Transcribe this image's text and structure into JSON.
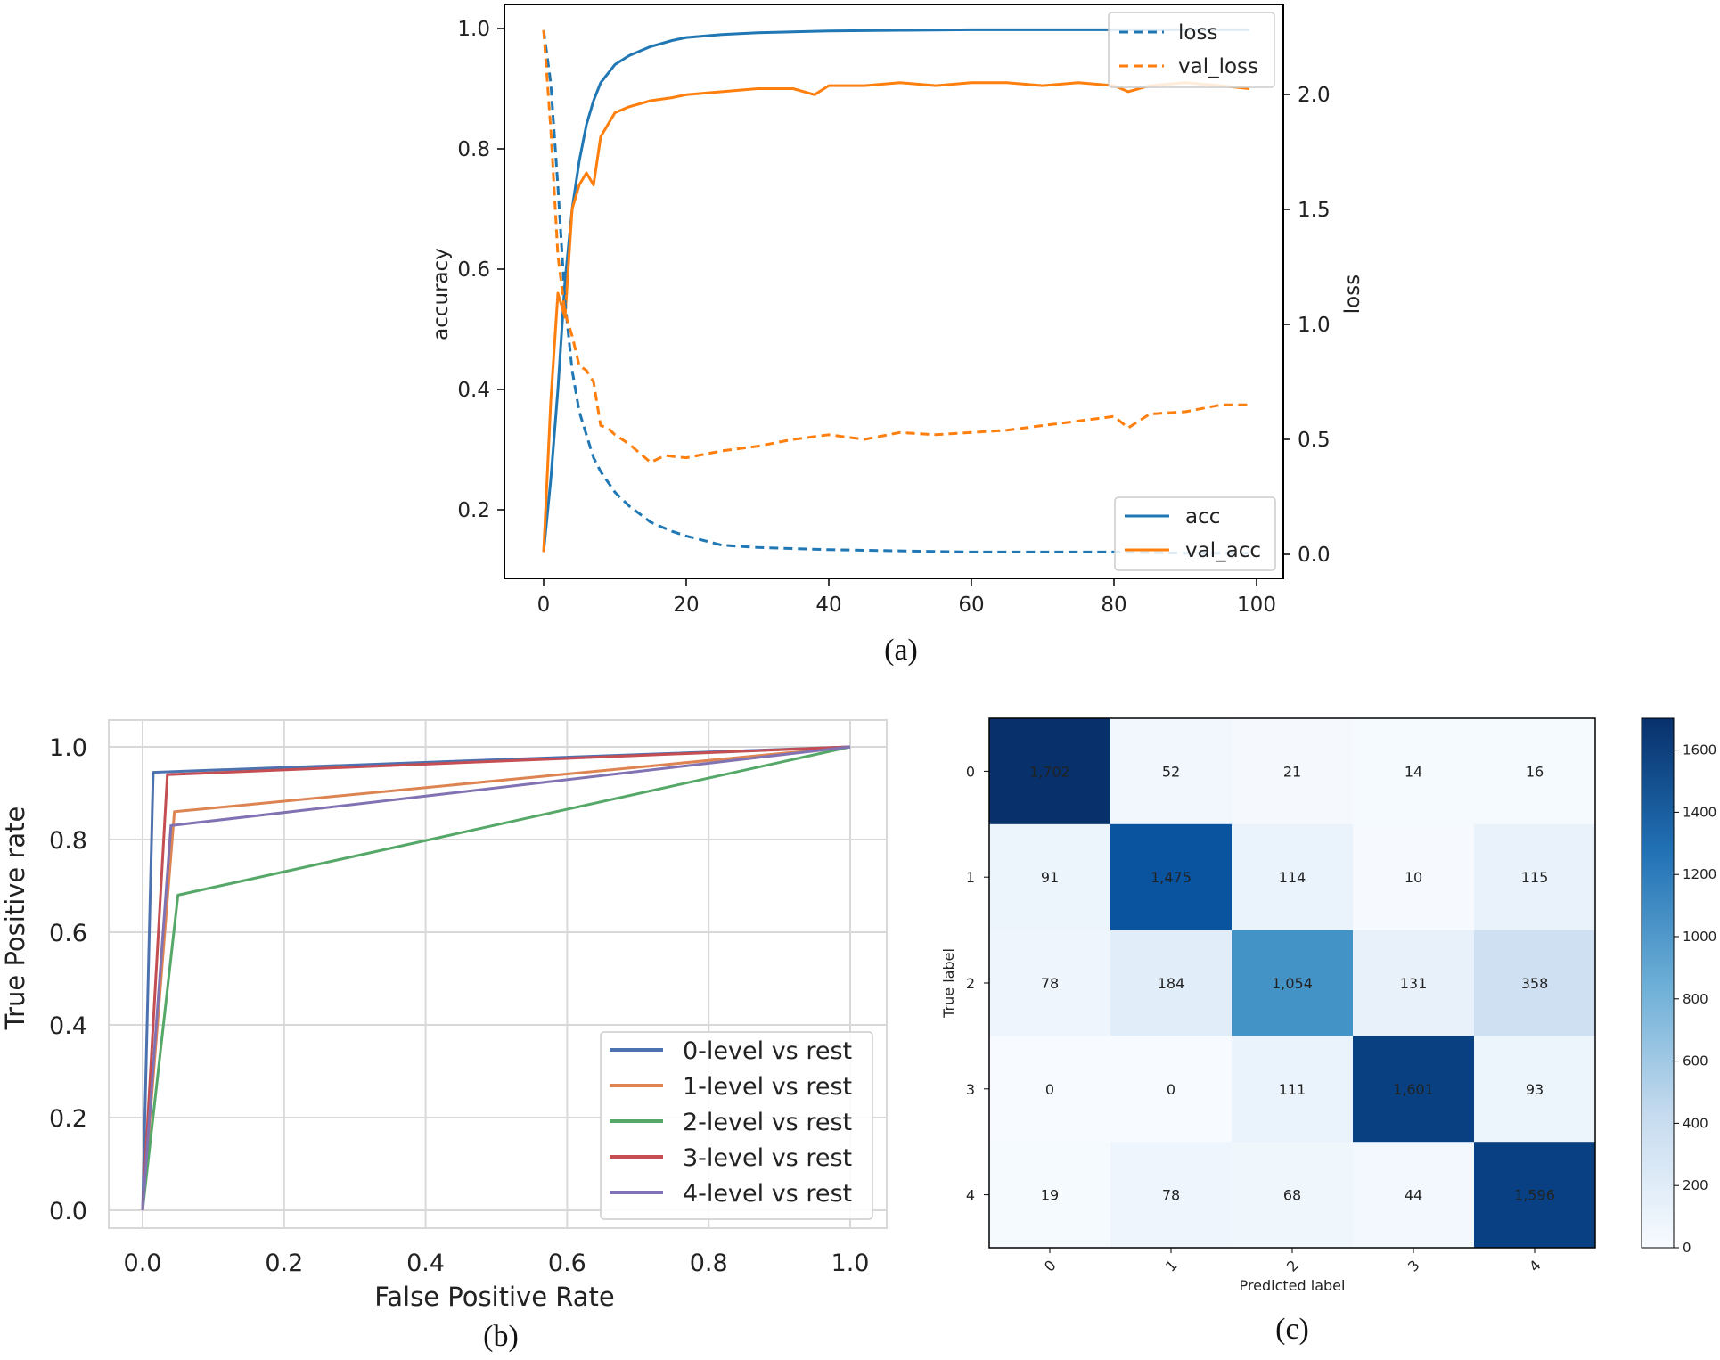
{
  "captions": {
    "a": "(a)",
    "b": "(b)",
    "c": "(c)"
  },
  "chart_data": [
    {
      "type": "line",
      "panel": "a",
      "ylabel": "accuracy",
      "y2label": "loss",
      "xlim": [
        0,
        100
      ],
      "ylim": [
        0.1,
        1.0
      ],
      "y2lim": [
        0.0,
        2.3
      ],
      "xticks": [
        "0",
        "20",
        "40",
        "60",
        "80",
        "100"
      ],
      "yticks": [
        "0.2",
        "0.4",
        "0.6",
        "0.8",
        "1.0"
      ],
      "y2ticks": [
        "0.0",
        "0.5",
        "1.0",
        "1.5",
        "2.0"
      ],
      "colors": {
        "blue": "#1f77b4",
        "orange": "#ff7f0e"
      },
      "legend_loss": {
        "placement": "top-right",
        "entries": [
          "loss",
          "val_loss"
        ]
      },
      "legend_acc": {
        "placement": "bottom-right",
        "entries": [
          "acc",
          "val_acc"
        ]
      },
      "series": [
        {
          "name": "acc",
          "axis": "left",
          "style": "solid",
          "color": "#1f77b4",
          "x": [
            0,
            1,
            2,
            3,
            4,
            5,
            6,
            7,
            8,
            10,
            12,
            15,
            18,
            20,
            25,
            30,
            40,
            50,
            60,
            70,
            80,
            90,
            99
          ],
          "y": [
            0.13,
            0.25,
            0.4,
            0.58,
            0.7,
            0.78,
            0.84,
            0.88,
            0.91,
            0.94,
            0.955,
            0.97,
            0.98,
            0.985,
            0.99,
            0.993,
            0.996,
            0.997,
            0.998,
            0.998,
            0.998,
            0.998,
            0.998
          ]
        },
        {
          "name": "val_acc",
          "axis": "left",
          "style": "solid",
          "color": "#ff7f0e",
          "x": [
            0,
            1,
            2,
            3,
            4,
            5,
            6,
            7,
            8,
            9,
            10,
            12,
            15,
            18,
            20,
            25,
            30,
            35,
            38,
            40,
            45,
            50,
            55,
            60,
            65,
            70,
            75,
            80,
            82,
            85,
            90,
            95,
            99
          ],
          "y": [
            0.13,
            0.38,
            0.56,
            0.52,
            0.7,
            0.74,
            0.76,
            0.74,
            0.82,
            0.84,
            0.86,
            0.87,
            0.88,
            0.885,
            0.89,
            0.895,
            0.9,
            0.9,
            0.89,
            0.905,
            0.905,
            0.91,
            0.905,
            0.91,
            0.91,
            0.905,
            0.91,
            0.905,
            0.895,
            0.905,
            0.91,
            0.905,
            0.9
          ]
        },
        {
          "name": "loss",
          "axis": "right",
          "style": "dashed",
          "color": "#1f77b4",
          "x": [
            0,
            1,
            2,
            3,
            4,
            5,
            6,
            7,
            8,
            10,
            12,
            15,
            18,
            20,
            25,
            30,
            40,
            50,
            60,
            70,
            80,
            90,
            99
          ],
          "y": [
            2.28,
            2.05,
            1.6,
            1.1,
            0.8,
            0.62,
            0.52,
            0.42,
            0.36,
            0.27,
            0.21,
            0.14,
            0.1,
            0.08,
            0.04,
            0.03,
            0.02,
            0.015,
            0.01,
            0.01,
            0.01,
            0.005,
            0.005
          ]
        },
        {
          "name": "val_loss",
          "axis": "right",
          "style": "dashed",
          "color": "#ff7f0e",
          "x": [
            0,
            1,
            2,
            3,
            4,
            5,
            6,
            7,
            8,
            9,
            10,
            12,
            15,
            17,
            20,
            25,
            30,
            35,
            40,
            45,
            50,
            55,
            60,
            65,
            70,
            75,
            80,
            82,
            85,
            90,
            95,
            99
          ],
          "y": [
            2.28,
            1.85,
            1.3,
            1.05,
            0.95,
            0.82,
            0.8,
            0.75,
            0.56,
            0.55,
            0.52,
            0.48,
            0.4,
            0.43,
            0.42,
            0.45,
            0.47,
            0.5,
            0.52,
            0.5,
            0.53,
            0.52,
            0.53,
            0.54,
            0.56,
            0.58,
            0.6,
            0.55,
            0.61,
            0.62,
            0.65,
            0.65
          ]
        }
      ]
    },
    {
      "type": "line",
      "panel": "b",
      "xlabel": "False Positive Rate",
      "ylabel": "True Positive rate",
      "xlim": [
        0,
        1
      ],
      "ylim": [
        0,
        1
      ],
      "grid": true,
      "xticks": [
        "0.0",
        "0.2",
        "0.4",
        "0.6",
        "0.8",
        "1.0"
      ],
      "yticks": [
        "0.0",
        "0.2",
        "0.4",
        "0.6",
        "0.8",
        "1.0"
      ],
      "legend": {
        "placement": "bottom-right"
      },
      "series": [
        {
          "name": "0-level vs rest",
          "color": "#4c72b0",
          "x": [
            0,
            0.015,
            1
          ],
          "y": [
            0,
            0.945,
            1
          ]
        },
        {
          "name": "1-level vs rest",
          "color": "#dd8452",
          "x": [
            0,
            0.045,
            1
          ],
          "y": [
            0,
            0.86,
            1
          ]
        },
        {
          "name": "2-level vs rest",
          "color": "#55a868",
          "x": [
            0,
            0.05,
            1
          ],
          "y": [
            0,
            0.68,
            1
          ]
        },
        {
          "name": "3-level vs rest",
          "color": "#c44e52",
          "x": [
            0,
            0.035,
            1
          ],
          "y": [
            0,
            0.94,
            1
          ]
        },
        {
          "name": "4-level vs rest",
          "color": "#8172b3",
          "x": [
            0,
            0.04,
            1
          ],
          "y": [
            0,
            0.83,
            1
          ]
        }
      ]
    },
    {
      "type": "heatmap",
      "panel": "c",
      "xlabel": "Predicted label",
      "ylabel": "True label",
      "x_categories": [
        "0",
        "1",
        "2",
        "3",
        "4"
      ],
      "y_categories": [
        "0",
        "1",
        "2",
        "3",
        "4"
      ],
      "values": [
        [
          1702,
          52,
          21,
          14,
          16
        ],
        [
          91,
          1475,
          114,
          10,
          115
        ],
        [
          78,
          184,
          1054,
          131,
          358
        ],
        [
          0,
          0,
          111,
          1601,
          93
        ],
        [
          19,
          78,
          68,
          44,
          1596
        ]
      ],
      "value_labels": [
        [
          "1,702",
          "52",
          "21",
          "14",
          "16"
        ],
        [
          "91",
          "1,475",
          "114",
          "10",
          "115"
        ],
        [
          "78",
          "184",
          "1,054",
          "131",
          "358"
        ],
        [
          "0",
          "0",
          "111",
          "1,601",
          "93"
        ],
        [
          "19",
          "78",
          "68",
          "44",
          "1,596"
        ]
      ],
      "colormap": "Blues",
      "colorbar": {
        "min": 0,
        "max": 1702,
        "ticks": [
          "0",
          "200",
          "400",
          "600",
          "800",
          "1000",
          "1200",
          "1400",
          "1600"
        ]
      }
    }
  ]
}
